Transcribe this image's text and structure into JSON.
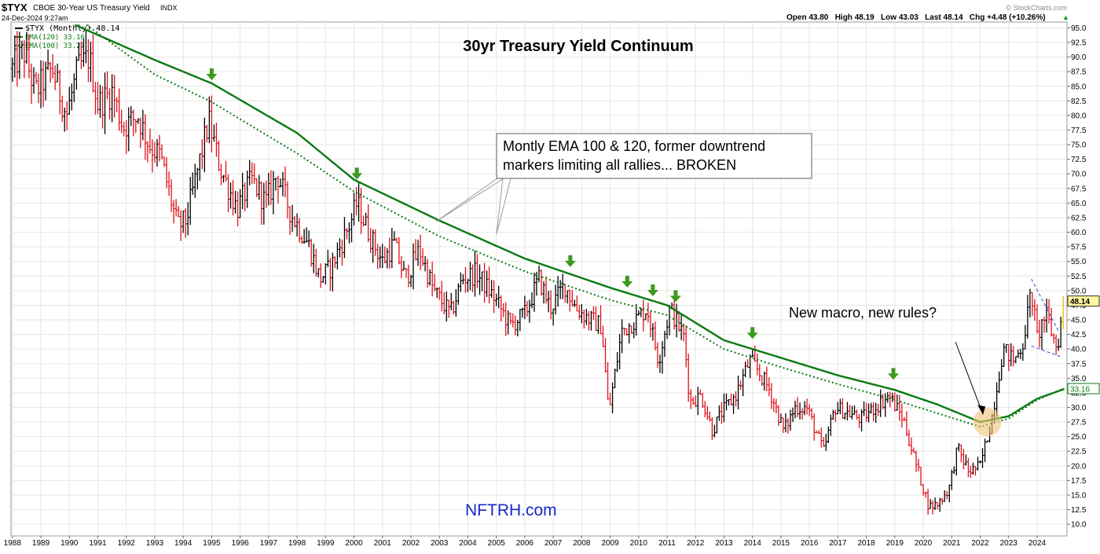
{
  "header": {
    "symbol": "$TYX",
    "name": "CBOE 30-Year US Treasury Yield",
    "exchange": "INDX",
    "date": "24-Dec-2024 9:27am",
    "quote": "Open 43.80   High 48.19   Low 43.03   Last 48.14   Chg +4.48 (+10.26%)",
    "quote_arrow": "▲",
    "watermark": "© StockCharts.com"
  },
  "legend": {
    "price": "$TYX (Monthly) 48.14",
    "ema120": "EMA(120) 33.16",
    "ema100": "EMA(100) 33.27"
  },
  "colors": {
    "up_bar": "#000000",
    "down_bar": "#e0101a",
    "ema": "#0a7a12",
    "arrow": "#3c9a1e",
    "trendline": "#3344cc",
    "highlight": "#f3c27a",
    "grid": "#e6e6e6",
    "last_tag": "#fff8a0"
  },
  "chart_data": {
    "type": "bar",
    "subtype": "ohlc",
    "interval": "monthly",
    "title": "30yr Treasury Yield Continuum",
    "xlabel": "",
    "ylabel": "",
    "x_ticks": [
      "1988",
      "1989",
      "1990",
      "1991",
      "1992",
      "1993",
      "1994",
      "1995",
      "1996",
      "1997",
      "1998",
      "1999",
      "2000",
      "2001",
      "2002",
      "2003",
      "2004",
      "2005",
      "2006",
      "2007",
      "2008",
      "2009",
      "2010",
      "2011",
      "2012",
      "2013",
      "2014",
      "2015",
      "2016",
      "2017",
      "2018",
      "2019",
      "2020",
      "2021",
      "2022",
      "2023",
      "2024"
    ],
    "y_ticks": [
      "10.0",
      "12.5",
      "15.0",
      "17.5",
      "20.0",
      "22.5",
      "25.0",
      "27.5",
      "30.0",
      "32.5",
      "35.0",
      "37.5",
      "40.0",
      "42.5",
      "45.0",
      "47.5",
      "50.0",
      "52.5",
      "55.0",
      "57.5",
      "60.0",
      "62.5",
      "65.0",
      "67.5",
      "70.0",
      "72.5",
      "75.0",
      "77.5",
      "80.0",
      "82.5",
      "85.0",
      "87.5",
      "90.0",
      "92.5",
      "95.0"
    ],
    "ylim": [
      8,
      96
    ],
    "xlim": [
      1987.95,
      2025.05
    ],
    "grid": true,
    "legend_position": "top-left",
    "last_value_tags": [
      "48.14",
      "33.16"
    ],
    "price_anchors": [
      [
        1988.0,
        88
      ],
      [
        1988.4,
        91
      ],
      [
        1988.8,
        84
      ],
      [
        1989.4,
        88
      ],
      [
        1989.9,
        80
      ],
      [
        1990.3,
        88
      ],
      [
        1990.7,
        90
      ],
      [
        1991.0,
        82
      ],
      [
        1991.5,
        84
      ],
      [
        1991.9,
        78
      ],
      [
        1992.4,
        80
      ],
      [
        1992.8,
        75
      ],
      [
        1993.2,
        73
      ],
      [
        1993.8,
        61
      ],
      [
        1994.1,
        62
      ],
      [
        1994.9,
        79
      ],
      [
        1995.3,
        71
      ],
      [
        1995.9,
        64
      ],
      [
        1996.4,
        69
      ],
      [
        1996.9,
        65
      ],
      [
        1997.3,
        70
      ],
      [
        1997.8,
        63
      ],
      [
        1998.4,
        58
      ],
      [
        1998.8,
        52
      ],
      [
        1999.2,
        54
      ],
      [
        1999.9,
        62
      ],
      [
        2000.1,
        65
      ],
      [
        2000.6,
        59
      ],
      [
        2001.0,
        55
      ],
      [
        2001.4,
        58
      ],
      [
        2001.8,
        52
      ],
      [
        2002.3,
        57
      ],
      [
        2002.8,
        50
      ],
      [
        2003.4,
        46
      ],
      [
        2003.8,
        52
      ],
      [
        2004.3,
        53
      ],
      [
        2004.9,
        49
      ],
      [
        2005.5,
        44
      ],
      [
        2006.0,
        46
      ],
      [
        2006.5,
        52
      ],
      [
        2006.9,
        47
      ],
      [
        2007.4,
        51
      ],
      [
        2007.8,
        47
      ],
      [
        2008.3,
        45
      ],
      [
        2008.7,
        44
      ],
      [
        2008.95,
        29
      ],
      [
        2009.4,
        43
      ],
      [
        2009.9,
        45
      ],
      [
        2010.3,
        47
      ],
      [
        2010.7,
        38
      ],
      [
        2011.1,
        47
      ],
      [
        2011.6,
        42
      ],
      [
        2011.8,
        31
      ],
      [
        2012.2,
        32
      ],
      [
        2012.6,
        26
      ],
      [
        2012.9,
        29
      ],
      [
        2013.4,
        32
      ],
      [
        2013.9,
        38
      ],
      [
        2014.1,
        37
      ],
      [
        2014.6,
        33
      ],
      [
        2015.1,
        26
      ],
      [
        2015.5,
        30
      ],
      [
        2015.9,
        30
      ],
      [
        2016.5,
        22.5
      ],
      [
        2016.9,
        30
      ],
      [
        2017.4,
        29
      ],
      [
        2017.8,
        28
      ],
      [
        2018.3,
        30
      ],
      [
        2018.8,
        32
      ],
      [
        2019.3,
        28
      ],
      [
        2019.7,
        21
      ],
      [
        2020.2,
        13
      ],
      [
        2020.5,
        13.5
      ],
      [
        2020.9,
        16
      ],
      [
        2021.2,
        23
      ],
      [
        2021.6,
        19
      ],
      [
        2022.0,
        20
      ],
      [
        2022.4,
        28
      ],
      [
        2022.8,
        40
      ],
      [
        2023.2,
        38
      ],
      [
        2023.5,
        41
      ],
      [
        2023.8,
        50
      ],
      [
        2024.0,
        42
      ],
      [
        2024.3,
        46
      ],
      [
        2024.7,
        40
      ],
      [
        2024.95,
        48.14
      ]
    ],
    "ema120_anchors": [
      [
        1990.2,
        95.5
      ],
      [
        1993.0,
        89.5
      ],
      [
        1995.0,
        85.5
      ],
      [
        1998.0,
        77
      ],
      [
        2000.0,
        69
      ],
      [
        2003.0,
        62
      ],
      [
        2006.0,
        55.5
      ],
      [
        2009.0,
        50.5
      ],
      [
        2011.0,
        47.5
      ],
      [
        2013.0,
        41.5
      ],
      [
        2015.0,
        38.5
      ],
      [
        2017.0,
        35.5
      ],
      [
        2019.0,
        33
      ],
      [
        2020.5,
        30.5
      ],
      [
        2022.0,
        27.5
      ],
      [
        2023.0,
        28.5
      ],
      [
        2024.0,
        31.5
      ],
      [
        2024.95,
        33.16
      ]
    ],
    "ema100_anchors": [
      [
        1990.6,
        95.5
      ],
      [
        1993.0,
        87
      ],
      [
        1995.0,
        82.3
      ],
      [
        1998.0,
        73.5
      ],
      [
        2000.0,
        67
      ],
      [
        2003.0,
        59.3
      ],
      [
        2006.0,
        53.3
      ],
      [
        2009.0,
        48.4
      ],
      [
        2011.0,
        45.8
      ],
      [
        2013.0,
        40.0
      ],
      [
        2015.0,
        36.9
      ],
      [
        2017.0,
        34.0
      ],
      [
        2019.0,
        31.3
      ],
      [
        2020.5,
        29.0
      ],
      [
        2022.0,
        26.7
      ],
      [
        2023.0,
        28.1
      ],
      [
        2024.0,
        31.3
      ],
      [
        2024.95,
        33.27
      ]
    ],
    "rejection_arrows": [
      [
        1995.0,
        85.5
      ],
      [
        2000.1,
        68.5
      ],
      [
        2007.6,
        53.5
      ],
      [
        2009.6,
        50.0
      ],
      [
        2010.5,
        48.5
      ],
      [
        2011.3,
        47.5
      ],
      [
        2014.0,
        41.2
      ],
      [
        2018.95,
        34.2
      ]
    ],
    "trendline_upper": [
      [
        2023.8,
        52.0
      ],
      [
        2025.0,
        42.8
      ]
    ],
    "trendline_lower": [
      [
        2023.8,
        40.5
      ],
      [
        2025.0,
        38.6
      ]
    ],
    "annotations": [
      {
        "text": [
          "Montly EMA 100 & 120, former downtrend",
          "markers limiting all rallies... BROKEN"
        ]
      },
      {
        "text": [
          "New macro, new rules?"
        ]
      },
      {
        "text": [
          "NFTRH.com"
        ]
      }
    ]
  }
}
